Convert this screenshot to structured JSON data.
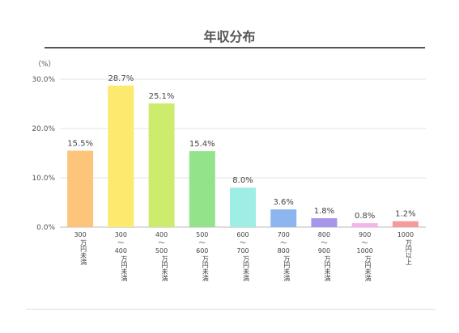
{
  "chart_data": {
    "type": "bar",
    "title": "年収分布",
    "ylabel": "（%）",
    "ylim": [
      0,
      30
    ],
    "yticks": [
      "0.0%",
      "10.0%",
      "20.0%",
      "30.0%"
    ],
    "grid": true,
    "categories": [
      [
        "300",
        "万円未満"
      ],
      [
        "300",
        "〜",
        "400",
        "万円未満"
      ],
      [
        "400",
        "〜",
        "500",
        "万円未満"
      ],
      [
        "500",
        "〜",
        "600",
        "万円未満"
      ],
      [
        "600",
        "〜",
        "700",
        "万円未満"
      ],
      [
        "700",
        "〜",
        "800",
        "万円未満"
      ],
      [
        "800",
        "〜",
        "900",
        "万円未満"
      ],
      [
        "900",
        "〜",
        "1000",
        "万円未満"
      ],
      [
        "1000",
        "万円以上"
      ]
    ],
    "values": [
      15.5,
      28.7,
      25.1,
      15.4,
      8.0,
      3.6,
      1.8,
      0.8,
      1.2
    ],
    "value_labels": [
      "15.5%",
      "28.7%",
      "25.1%",
      "15.4%",
      "8.0%",
      "3.6%",
      "1.8%",
      "0.8%",
      "1.2%"
    ],
    "colors": [
      "#fcc57a",
      "#fde96e",
      "#cdec6d",
      "#93e38b",
      "#9eeee6",
      "#8db5ef",
      "#a795ea",
      "#f4b3ea",
      "#f59b9b"
    ]
  }
}
